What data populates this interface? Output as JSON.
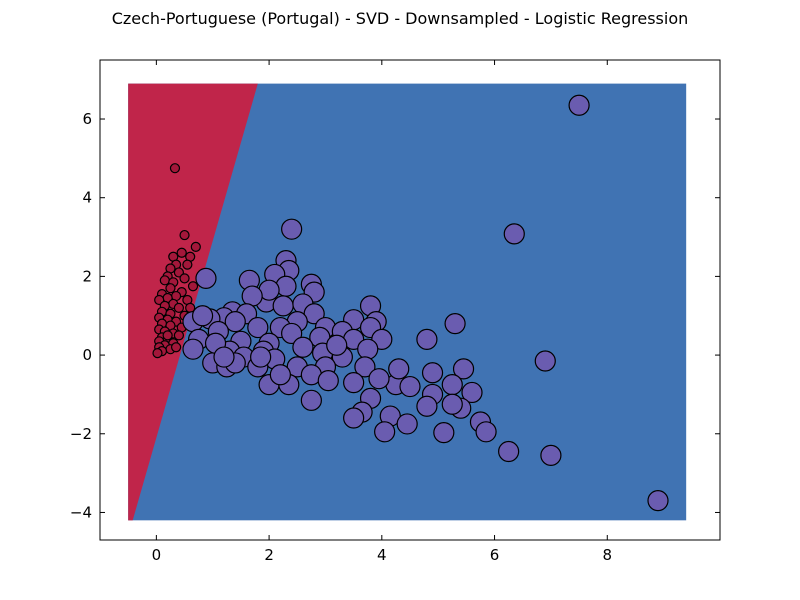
{
  "chart_data": {
    "type": "scatter",
    "title": "Czech-Portuguese (Portugal) - SVD - Downsampled - Logistic Regression",
    "xlabel": "",
    "ylabel": "",
    "xlim": [
      -1.0,
      10.0
    ],
    "ylim": [
      -4.7,
      7.5
    ],
    "xticks": [
      0,
      2,
      4,
      6,
      8
    ],
    "yticks": [
      -4,
      -2,
      0,
      2,
      4,
      6
    ],
    "xtick_labels": [
      "0",
      "2",
      "4",
      "6",
      "8"
    ],
    "ytick_labels": [
      "−4",
      "−2",
      "0",
      "2",
      "4",
      "6"
    ],
    "grid": false,
    "decision_regions": {
      "extent": {
        "x": [
          -0.5,
          9.4
        ],
        "y": [
          -4.2,
          6.9
        ]
      },
      "boundary_line": [
        [
          -0.42,
          -4.2
        ],
        [
          1.8,
          6.9
        ]
      ],
      "left_region_color": "#c0254a",
      "right_region_color": "#4073b3"
    },
    "series": [
      {
        "color": "#a3173a",
        "marker_size": "small",
        "points": [
          [
            0.33,
            4.75
          ],
          [
            0.5,
            3.05
          ],
          [
            0.7,
            2.75
          ],
          [
            0.45,
            2.6
          ],
          [
            0.6,
            2.5
          ],
          [
            0.3,
            2.5
          ],
          [
            0.35,
            2.3
          ],
          [
            0.55,
            2.3
          ],
          [
            0.25,
            2.2
          ],
          [
            0.4,
            2.1
          ],
          [
            0.2,
            2.0
          ],
          [
            0.5,
            1.95
          ],
          [
            0.15,
            1.9
          ],
          [
            0.3,
            1.85
          ],
          [
            0.65,
            1.75
          ],
          [
            0.25,
            1.7
          ],
          [
            0.45,
            1.6
          ],
          [
            0.1,
            1.55
          ],
          [
            0.35,
            1.5
          ],
          [
            0.2,
            1.45
          ],
          [
            0.55,
            1.4
          ],
          [
            0.05,
            1.4
          ],
          [
            0.3,
            1.3
          ],
          [
            0.15,
            1.25
          ],
          [
            0.4,
            1.2
          ],
          [
            0.1,
            1.1
          ],
          [
            0.25,
            1.05
          ],
          [
            0.5,
            1.0
          ],
          [
            0.05,
            0.95
          ],
          [
            0.2,
            0.9
          ],
          [
            0.35,
            0.85
          ],
          [
            0.1,
            0.8
          ],
          [
            0.25,
            0.75
          ],
          [
            0.45,
            0.7
          ],
          [
            0.05,
            0.65
          ],
          [
            0.15,
            0.6
          ],
          [
            0.3,
            0.55
          ],
          [
            0.4,
            0.5
          ],
          [
            0.1,
            0.45
          ],
          [
            0.2,
            0.4
          ],
          [
            0.05,
            0.35
          ],
          [
            0.3,
            0.3
          ],
          [
            0.15,
            0.25
          ],
          [
            0.05,
            0.2
          ],
          [
            0.25,
            0.15
          ],
          [
            0.1,
            0.1
          ],
          [
            0.02,
            0.05
          ],
          [
            0.2,
            0.5
          ],
          [
            0.6,
            1.2
          ],
          [
            0.35,
            0.2
          ]
        ]
      },
      {
        "color": "#6a5cb0",
        "marker_size": "large",
        "points": [
          [
            7.5,
            6.35
          ],
          [
            2.4,
            3.2
          ],
          [
            6.35,
            3.08
          ],
          [
            2.3,
            2.4
          ],
          [
            2.35,
            2.15
          ],
          [
            0.88,
            1.95
          ],
          [
            1.65,
            1.9
          ],
          [
            2.1,
            2.05
          ],
          [
            2.75,
            1.8
          ],
          [
            2.8,
            1.6
          ],
          [
            2.3,
            1.75
          ],
          [
            1.95,
            1.35
          ],
          [
            2.0,
            1.65
          ],
          [
            1.7,
            1.5
          ],
          [
            3.8,
            1.25
          ],
          [
            2.25,
            1.25
          ],
          [
            2.6,
            1.3
          ],
          [
            1.35,
            1.1
          ],
          [
            1.6,
            1.05
          ],
          [
            2.8,
            1.05
          ],
          [
            3.5,
            0.9
          ],
          [
            3.9,
            0.85
          ],
          [
            5.3,
            0.8
          ],
          [
            1.2,
            0.95
          ],
          [
            0.95,
            0.92
          ],
          [
            0.65,
            0.85
          ],
          [
            1.4,
            0.85
          ],
          [
            2.5,
            0.85
          ],
          [
            3.0,
            0.7
          ],
          [
            1.8,
            0.7
          ],
          [
            2.2,
            0.7
          ],
          [
            3.3,
            0.6
          ],
          [
            3.8,
            0.7
          ],
          [
            1.1,
            0.6
          ],
          [
            2.4,
            0.55
          ],
          [
            0.75,
            0.4
          ],
          [
            2.9,
            0.45
          ],
          [
            4.0,
            0.4
          ],
          [
            4.8,
            0.4
          ],
          [
            1.5,
            0.35
          ],
          [
            2.0,
            0.3
          ],
          [
            3.5,
            0.4
          ],
          [
            0.65,
            0.15
          ],
          [
            1.3,
            0.1
          ],
          [
            1.9,
            0.1
          ],
          [
            2.6,
            0.2
          ],
          [
            3.75,
            0.15
          ],
          [
            2.95,
            0.05
          ],
          [
            1.55,
            -0.05
          ],
          [
            2.1,
            -0.1
          ],
          [
            3.3,
            -0.05
          ],
          [
            1.0,
            -0.2
          ],
          [
            1.8,
            -0.3
          ],
          [
            2.5,
            -0.3
          ],
          [
            3.0,
            -0.3
          ],
          [
            3.7,
            -0.3
          ],
          [
            1.25,
            -0.3
          ],
          [
            1.4,
            -0.2
          ],
          [
            2.75,
            -0.5
          ],
          [
            4.9,
            -0.45
          ],
          [
            5.45,
            -0.35
          ],
          [
            3.5,
            -0.7
          ],
          [
            2.0,
            -0.75
          ],
          [
            2.35,
            -0.75
          ],
          [
            3.05,
            -0.65
          ],
          [
            4.25,
            -0.75
          ],
          [
            4.5,
            -0.8
          ],
          [
            5.25,
            -0.75
          ],
          [
            5.6,
            -0.95
          ],
          [
            2.75,
            -1.15
          ],
          [
            3.8,
            -1.1
          ],
          [
            4.9,
            -1.0
          ],
          [
            5.4,
            -1.35
          ],
          [
            4.8,
            -1.3
          ],
          [
            5.25,
            -1.25
          ],
          [
            3.65,
            -1.45
          ],
          [
            3.5,
            -1.6
          ],
          [
            4.15,
            -1.55
          ],
          [
            4.45,
            -1.75
          ],
          [
            5.75,
            -1.7
          ],
          [
            4.05,
            -1.95
          ],
          [
            5.1,
            -1.97
          ],
          [
            5.85,
            -1.95
          ],
          [
            6.9,
            -0.15
          ],
          [
            6.25,
            -2.45
          ],
          [
            7.0,
            -2.55
          ],
          [
            8.9,
            -3.7
          ],
          [
            1.85,
            -0.05
          ],
          [
            3.2,
            0.25
          ],
          [
            2.2,
            -0.5
          ],
          [
            4.3,
            -0.35
          ],
          [
            3.95,
            -0.6
          ],
          [
            1.05,
            0.3
          ],
          [
            0.82,
            1.0
          ],
          [
            1.2,
            -0.05
          ]
        ]
      }
    ]
  }
}
